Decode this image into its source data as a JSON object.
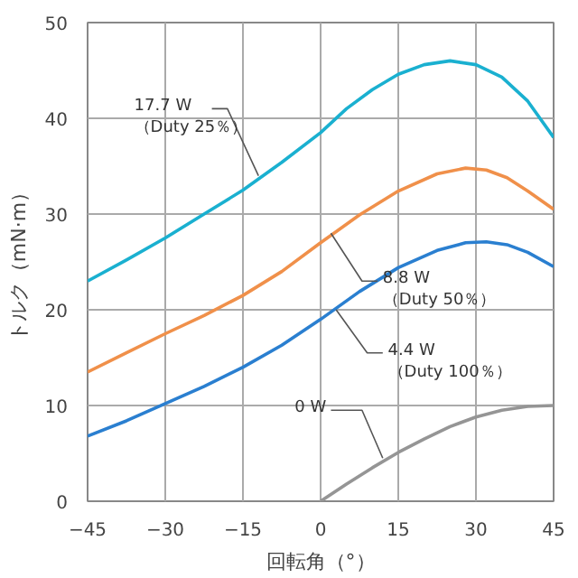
{
  "chart_data": {
    "type": "line",
    "xlabel": "回転角（°）",
    "ylabel": "トルク（mN·m）",
    "xlim": [
      -45,
      45
    ],
    "ylim": [
      0,
      50
    ],
    "xticks": [
      -45,
      -30,
      -15,
      0,
      15,
      30,
      45
    ],
    "yticks": [
      0,
      10,
      20,
      30,
      40,
      50
    ],
    "grid": true,
    "line_style": "solid",
    "marker": "none",
    "series": [
      {
        "color": "#1ab0d0",
        "x": [
          -45,
          -37.5,
          -30,
          -22.5,
          -15,
          -7.5,
          0,
          5,
          10,
          15,
          20,
          25,
          30,
          35,
          40,
          45
        ],
        "values": [
          23,
          25.2,
          27.5,
          30,
          32.5,
          35.4,
          38.5,
          41,
          43,
          44.6,
          45.6,
          46,
          45.6,
          44.3,
          41.8,
          38
        ]
      },
      {
        "color": "#f0904a",
        "x": [
          -45,
          -37.5,
          -30,
          -22.5,
          -15,
          -7.5,
          0,
          7.5,
          15,
          22.5,
          28,
          32,
          36,
          40,
          45
        ],
        "values": [
          13.5,
          15.5,
          17.5,
          19.4,
          21.5,
          24,
          27,
          29.9,
          32.4,
          34.2,
          34.8,
          34.6,
          33.8,
          32.4,
          30.5
        ]
      },
      {
        "color": "#2a7fd0",
        "x": [
          -45,
          -37.5,
          -30,
          -22.5,
          -15,
          -7.5,
          0,
          7.5,
          15,
          22.5,
          28,
          32,
          36,
          40,
          45
        ],
        "values": [
          6.8,
          8.4,
          10.2,
          12,
          14,
          16.3,
          19,
          21.9,
          24.4,
          26.2,
          27,
          27.1,
          26.8,
          26,
          24.5
        ]
      },
      {
        "color": "#959595",
        "x": [
          0,
          5,
          10,
          15,
          20,
          25,
          30,
          35,
          40,
          45
        ],
        "values": [
          0,
          1.8,
          3.5,
          5.1,
          6.5,
          7.8,
          8.8,
          9.5,
          9.9,
          10
        ]
      }
    ],
    "annotations": [
      {
        "text": "17.7 W\n（Duty 25％）",
        "x": -12,
        "y": 34
      },
      {
        "text": "8.8 W\n（Duty 50％）",
        "x": 2,
        "y": 28
      },
      {
        "text": "4.4 W\n（Duty 100％）",
        "x": 3,
        "y": 20
      },
      {
        "text": "0 W",
        "x": 12,
        "y": 4.5
      }
    ]
  }
}
